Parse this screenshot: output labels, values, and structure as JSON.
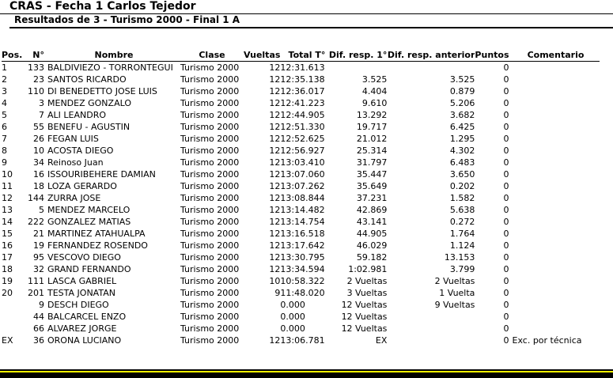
{
  "header": {
    "title": "CRAS - Fecha 1 Carlos Tejedor",
    "subtitle": "Resultados de 3 - Turismo 2000 - Final 1 A"
  },
  "table": {
    "columns": {
      "pos": "Pos.",
      "num": "N°",
      "name": "Nombre",
      "clase": "Clase",
      "vueltas": "Vueltas",
      "total": "Total T°",
      "dif_first": "Dif. resp. 1°",
      "dif_prev": "Dif. resp. anterior",
      "puntos": "Puntos",
      "comentario": "Comentario"
    },
    "rows": [
      {
        "pos": "1",
        "num": "133",
        "name": "BALDIVIEZO - TORRONTEGUI",
        "clase": "Turismo 2000",
        "vueltas": "12",
        "total": "12:31.613",
        "dif_first": "",
        "dif_prev": "",
        "puntos": "0",
        "comentario": ""
      },
      {
        "pos": "2",
        "num": "23",
        "name": "SANTOS RICARDO",
        "clase": "Turismo 2000",
        "vueltas": "12",
        "total": "12:35.138",
        "dif_first": "3.525",
        "dif_prev": "3.525",
        "puntos": "0",
        "comentario": ""
      },
      {
        "pos": "3",
        "num": "110",
        "name": "DI BENEDETTO JOSE LUIS",
        "clase": "Turismo 2000",
        "vueltas": "12",
        "total": "12:36.017",
        "dif_first": "4.404",
        "dif_prev": "0.879",
        "puntos": "0",
        "comentario": ""
      },
      {
        "pos": "4",
        "num": "3",
        "name": "MENDEZ GONZALO",
        "clase": "Turismo 2000",
        "vueltas": "12",
        "total": "12:41.223",
        "dif_first": "9.610",
        "dif_prev": "5.206",
        "puntos": "0",
        "comentario": ""
      },
      {
        "pos": "5",
        "num": "7",
        "name": "ALI LEANDRO",
        "clase": "Turismo 2000",
        "vueltas": "12",
        "total": "12:44.905",
        "dif_first": "13.292",
        "dif_prev": "3.682",
        "puntos": "0",
        "comentario": ""
      },
      {
        "pos": "6",
        "num": "55",
        "name": "BENEFU - AGUSTIN",
        "clase": "Turismo 2000",
        "vueltas": "12",
        "total": "12:51.330",
        "dif_first": "19.717",
        "dif_prev": "6.425",
        "puntos": "0",
        "comentario": ""
      },
      {
        "pos": "7",
        "num": "26",
        "name": "FEGAN LUIS",
        "clase": "Turismo 2000",
        "vueltas": "12",
        "total": "12:52.625",
        "dif_first": "21.012",
        "dif_prev": "1.295",
        "puntos": "0",
        "comentario": ""
      },
      {
        "pos": "8",
        "num": "10",
        "name": "ACOSTA DIEGO",
        "clase": "Turismo 2000",
        "vueltas": "12",
        "total": "12:56.927",
        "dif_first": "25.314",
        "dif_prev": "4.302",
        "puntos": "0",
        "comentario": ""
      },
      {
        "pos": "9",
        "num": "34",
        "name": "Reinoso Juan",
        "clase": "Turismo 2000",
        "vueltas": "12",
        "total": "13:03.410",
        "dif_first": "31.797",
        "dif_prev": "6.483",
        "puntos": "0",
        "comentario": ""
      },
      {
        "pos": "10",
        "num": "16",
        "name": "ISSOURIBEHERE DAMIAN",
        "clase": "Turismo 2000",
        "vueltas": "12",
        "total": "13:07.060",
        "dif_first": "35.447",
        "dif_prev": "3.650",
        "puntos": "0",
        "comentario": ""
      },
      {
        "pos": "11",
        "num": "18",
        "name": "LOZA GERARDO",
        "clase": "Turismo 2000",
        "vueltas": "12",
        "total": "13:07.262",
        "dif_first": "35.649",
        "dif_prev": "0.202",
        "puntos": "0",
        "comentario": ""
      },
      {
        "pos": "12",
        "num": "144",
        "name": "ZURRA JOSE",
        "clase": "Turismo 2000",
        "vueltas": "12",
        "total": "13:08.844",
        "dif_first": "37.231",
        "dif_prev": "1.582",
        "puntos": "0",
        "comentario": ""
      },
      {
        "pos": "13",
        "num": "5",
        "name": "MENDEZ MARCELO",
        "clase": "Turismo 2000",
        "vueltas": "12",
        "total": "13:14.482",
        "dif_first": "42.869",
        "dif_prev": "5.638",
        "puntos": "0",
        "comentario": ""
      },
      {
        "pos": "14",
        "num": "222",
        "name": "GONZALEZ MATIAS",
        "clase": "Turismo 2000",
        "vueltas": "12",
        "total": "13:14.754",
        "dif_first": "43.141",
        "dif_prev": "0.272",
        "puntos": "0",
        "comentario": ""
      },
      {
        "pos": "15",
        "num": "21",
        "name": "MARTINEZ ATAHUALPA",
        "clase": "Turismo 2000",
        "vueltas": "12",
        "total": "13:16.518",
        "dif_first": "44.905",
        "dif_prev": "1.764",
        "puntos": "0",
        "comentario": ""
      },
      {
        "pos": "16",
        "num": "19",
        "name": "FERNANDEZ ROSENDO",
        "clase": "Turismo 2000",
        "vueltas": "12",
        "total": "13:17.642",
        "dif_first": "46.029",
        "dif_prev": "1.124",
        "puntos": "0",
        "comentario": ""
      },
      {
        "pos": "17",
        "num": "95",
        "name": "VESCOVO DIEGO",
        "clase": "Turismo 2000",
        "vueltas": "12",
        "total": "13:30.795",
        "dif_first": "59.182",
        "dif_prev": "13.153",
        "puntos": "0",
        "comentario": ""
      },
      {
        "pos": "18",
        "num": "32",
        "name": "GRAND FERNANDO",
        "clase": "Turismo 2000",
        "vueltas": "12",
        "total": "13:34.594",
        "dif_first": "1:02.981",
        "dif_prev": "3.799",
        "puntos": "0",
        "comentario": ""
      },
      {
        "pos": "19",
        "num": "111",
        "name": "LASCA GABRIEL",
        "clase": "Turismo 2000",
        "vueltas": "10",
        "total": "10:58.322",
        "dif_first": "2 Vueltas",
        "dif_prev": "2 Vueltas",
        "puntos": "0",
        "comentario": ""
      },
      {
        "pos": "20",
        "num": "201",
        "name": "TESTA JONATAN",
        "clase": "Turismo 2000",
        "vueltas": "9",
        "total": "11:48.020",
        "dif_first": "3 Vueltas",
        "dif_prev": "1 Vuelta",
        "puntos": "0",
        "comentario": ""
      },
      {
        "pos": "",
        "num": "9",
        "name": "DESCH DIEGO",
        "clase": "Turismo 2000",
        "vueltas": "",
        "total": "0.000",
        "dif_first": "12 Vueltas",
        "dif_prev": "9 Vueltas",
        "puntos": "0",
        "comentario": ""
      },
      {
        "pos": "",
        "num": "44",
        "name": "BALCARCEL ENZO",
        "clase": "Turismo 2000",
        "vueltas": "",
        "total": "0.000",
        "dif_first": "12 Vueltas",
        "dif_prev": "",
        "puntos": "0",
        "comentario": ""
      },
      {
        "pos": "",
        "num": "66",
        "name": "ALVAREZ JORGE",
        "clase": "Turismo 2000",
        "vueltas": "",
        "total": "0.000",
        "dif_first": "12 Vueltas",
        "dif_prev": "",
        "puntos": "0",
        "comentario": ""
      },
      {
        "pos": "EX",
        "num": "36",
        "name": "ORONA LUCIANO",
        "clase": "Turismo 2000",
        "vueltas": "12",
        "total": "13:06.781",
        "dif_first": "EX",
        "dif_prev": "",
        "puntos": "0",
        "comentario": "Exc. por técnica"
      }
    ]
  },
  "colors": {
    "bottom_bar_yellow": "#ffff00",
    "bottom_bar_black": "#000000",
    "text": "#000000",
    "background": "#ffffff"
  }
}
